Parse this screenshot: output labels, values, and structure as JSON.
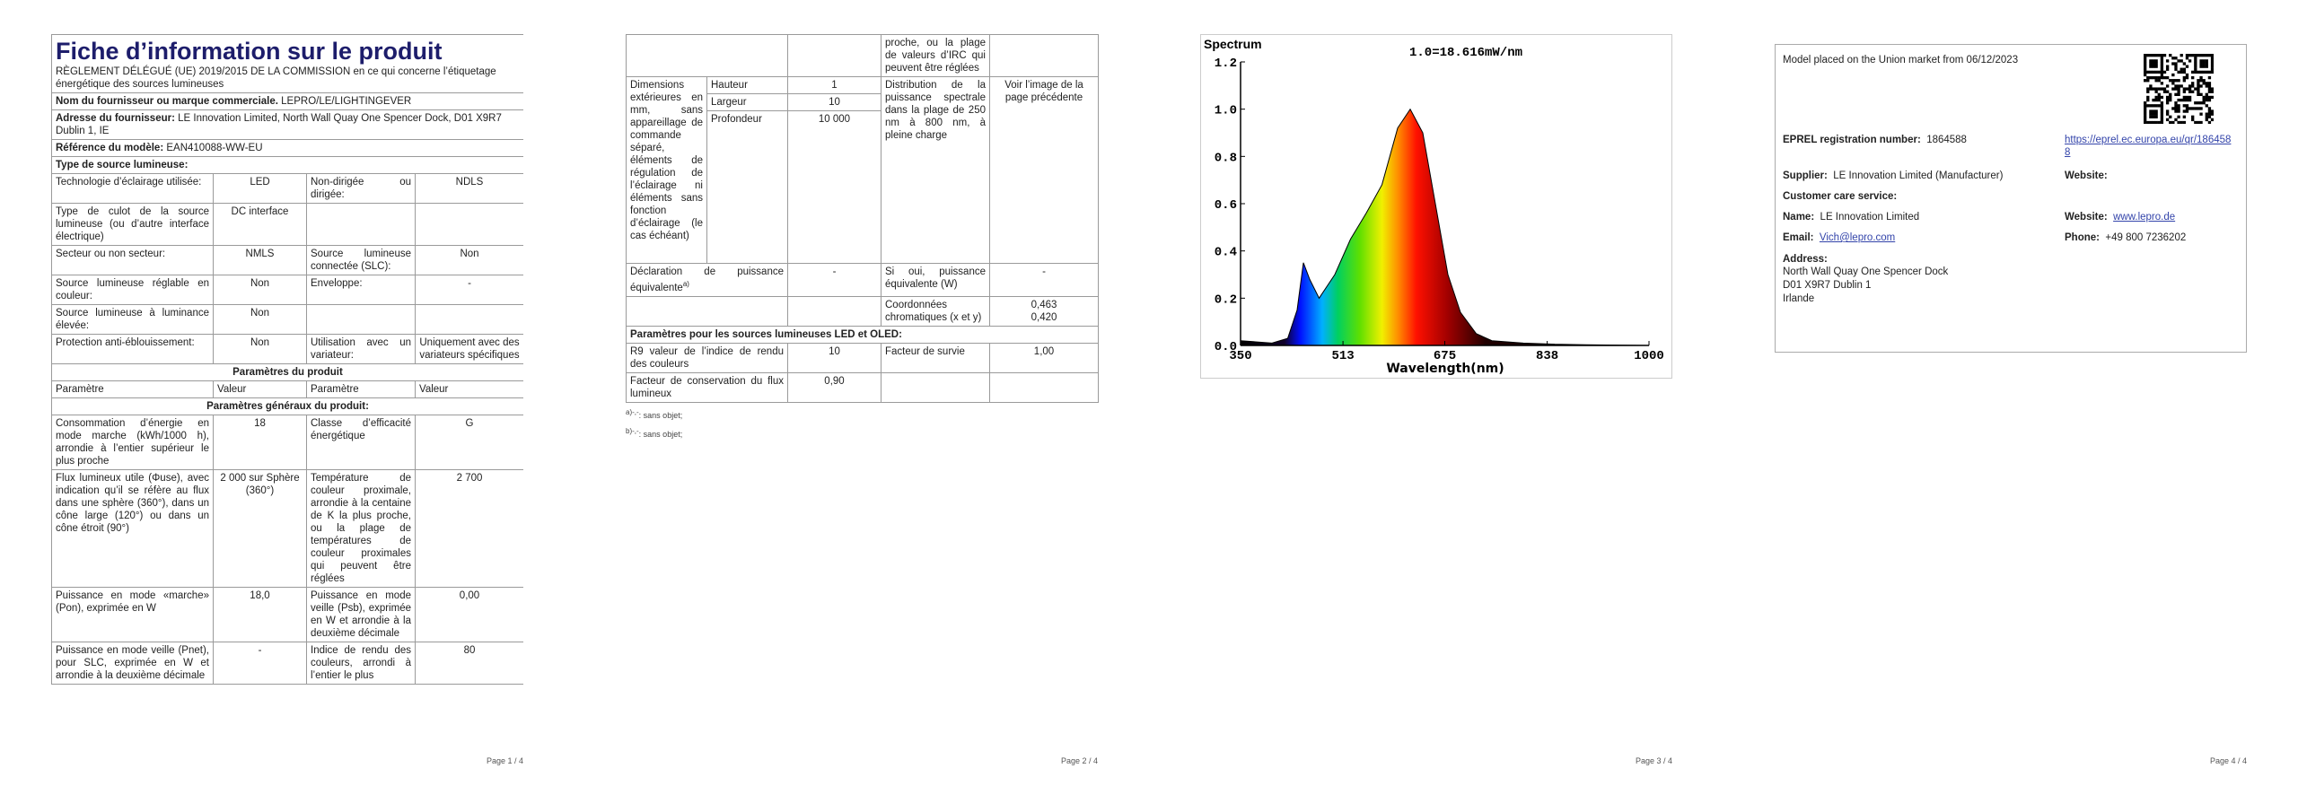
{
  "page1": {
    "title": "Fiche d’information sur le produit",
    "regulation": "RÈGLEMENT DÉLÉGUÉ (UE) 2019/2015 DE LA COMMISSION en ce qui concerne l’étiquetage énergétique des sources lumineuses",
    "supplier_name": {
      "label": "Nom du fournisseur ou marque commerciale.",
      "value": "LEPRO/LE/LIGHTINGEVER"
    },
    "supplier_address": {
      "label": "Adresse du fournisseur:",
      "value": "LE Innovation Limited, North Wall Quay One Spencer Dock, D01 X9R7 Dublin 1, IE"
    },
    "model": {
      "label": "Référence du modèle:",
      "value": "EAN410088-WW-EU"
    },
    "source_type": "Type de source lumineuse:",
    "type_rows": [
      [
        "Technologie d’éclairage utilisée:",
        "LED",
        "Non-dirigée ou dirigée:",
        "NDLS"
      ],
      [
        "Type de culot de la source lumineuse (ou d’autre interface électrique)",
        "DC interface"
      ],
      [
        "Secteur ou non secteur:",
        "NMLS",
        "Source lumineuse connectée (SLC):",
        "Non"
      ],
      [
        "Source lumineuse réglable en couleur:",
        "Non",
        "Enveloppe:",
        "-"
      ],
      [
        "Source lumineuse à luminance élevée:",
        "Non"
      ],
      [
        "Protection anti-éblouissement:",
        "Non",
        "Utilisation avec un variateur:",
        "Uniquement avec des variateurs spécifiques"
      ]
    ],
    "params_heading": "Paramètres du produit",
    "columns": [
      "Paramètre",
      "Valeur",
      "Paramètre",
      "Valeur"
    ],
    "general_heading": "Paramètres généraux du produit:",
    "param_rows": [
      [
        "Consommation d’énergie en mode marche (kWh/1000 h), arrondie à l’entier supérieur le plus proche",
        "18",
        "Classe d’efficacité énergétique",
        "G"
      ],
      [
        "Flux lumineux utile (Φuse), avec indication qu’il se réfère au flux dans une sphère (360°), dans un cône large (120°) ou dans un cône étroit (90°)",
        "2 000 sur Sphère (360°)",
        "Température de couleur proximale, arrondie à la centaine de K la plus proche, ou la plage de températures de couleur proximales qui peuvent être réglées",
        "2 700"
      ],
      [
        "Puissance en mode «marche» (Pon), exprimée en W",
        "18,0",
        "Puissance en mode veille (Psb), exprimée en W et arrondie à la deuxième décimale",
        "0,00"
      ],
      [
        "Puissance en mode veille (Pnet), pour SLC, exprimée en W et arrondie à la deuxième décimale",
        "-",
        "Indice de rendu des couleurs, arrondi à l’entier le plus",
        "80"
      ]
    ],
    "page_number": "Page 1 / 4"
  },
  "page2": {
    "continuation": "proche, ou la plage de valeurs d’IRC qui peuvent être réglées",
    "dimensions": {
      "label": "Dimensions extérieures en mm, sans appareillage de commande séparé, éléments de régulation de l’éclairage ni éléments sans fonction d’éclairage (le cas échéant)",
      "rows": [
        [
          "Hauteur",
          "1"
        ],
        [
          "Largeur",
          "10"
        ],
        [
          "Profondeur",
          "10 000"
        ]
      ]
    },
    "spectral": {
      "label": "Distribution de la puissance spectrale dans la plage de 250 nm à 800 nm, à pleine charge",
      "value": "Voir l’image de la page précédente"
    },
    "declaration": {
      "label": "Déclaration de puissance équivalente",
      "note": "a)",
      "value": "-",
      "label2": "Si oui, puissance équivalente (W)",
      "value2": "-"
    },
    "chromaticity": {
      "label": "Coordonnées chromatiques (x et y)",
      "values": [
        "0,463",
        "0,420"
      ]
    },
    "led_heading": "Paramètres pour les sources lumineuses LED et OLED:",
    "r9": {
      "label": "R9 valeur de l’indice de rendu des couleurs",
      "value": "10",
      "label2": "Facteur de survie",
      "value2": "1,00"
    },
    "flux": {
      "label": "Facteur de conservation du flux lumineux",
      "value": "0,90"
    },
    "footnotes": [
      {
        "mark": "a)-,-",
        "text": ": sans objet;"
      },
      {
        "mark": "b)-,-",
        "text": ": sans objet;"
      }
    ],
    "page_number": "Page 2 / 4"
  },
  "chart_data": {
    "type": "area",
    "title": "Spectrum",
    "annotation": "1.0=18.616mW/nm",
    "xlabel": "Wavelength(nm)",
    "x": [
      350,
      400,
      425,
      440,
      450,
      460,
      475,
      500,
      525,
      550,
      575,
      600,
      620,
      640,
      660,
      680,
      700,
      725,
      750,
      800,
      850,
      900,
      1000
    ],
    "values": [
      0.02,
      0.01,
      0.03,
      0.15,
      0.35,
      0.28,
      0.2,
      0.3,
      0.45,
      0.56,
      0.68,
      0.92,
      1.0,
      0.9,
      0.6,
      0.3,
      0.14,
      0.05,
      0.02,
      0.01,
      0.005,
      0.003,
      0
    ],
    "xlim": [
      350,
      1000
    ],
    "xticks": [
      350,
      513,
      675,
      838,
      1000
    ],
    "ylim": [
      0,
      1.2
    ],
    "yticks": [
      {
        "value": 0,
        "label": "0.0"
      },
      0.2,
      0.4,
      0.6,
      0.8,
      {
        "value": 1,
        "label": "1.0"
      },
      1.2
    ],
    "page_number": "Page 3 / 4"
  },
  "page4": {
    "market": "Model placed on the Union market from 06/12/2023",
    "eprel": {
      "label": "EPREL registration number:",
      "value": "1864588",
      "link": "https://eprel.ec.europa.eu/qr/1864588"
    },
    "supplier": {
      "label": "Supplier:",
      "value": "LE Innovation Limited (Manufacturer)",
      "website": "Website:"
    },
    "customer_care": "Customer care service:",
    "name": {
      "label": "Name:",
      "value": "LE Innovation Limited"
    },
    "website": {
      "label": "Website:",
      "value": "www.lepro.de"
    },
    "email": {
      "label": "Email:",
      "value": "Vich@lepro.com"
    },
    "phone": {
      "label": "Phone:",
      "value": "+49 800 7236202"
    },
    "address": {
      "label": "Address:",
      "lines": [
        "North Wall Quay One Spencer Dock",
        "D01 X9R7 Dublin 1",
        "Irlande"
      ]
    },
    "page_number": "Page 4 / 4"
  }
}
